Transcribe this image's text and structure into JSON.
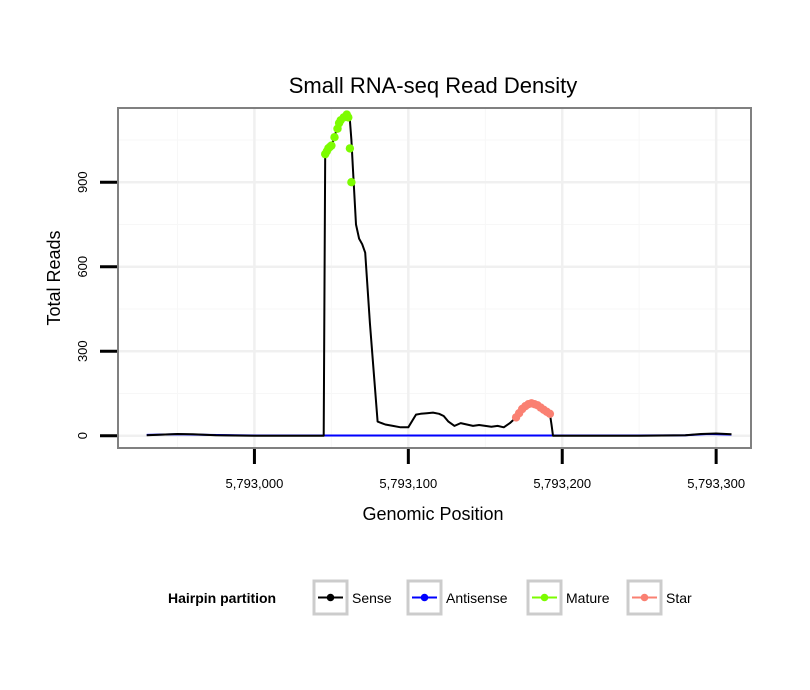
{
  "chart_data": {
    "type": "line",
    "title": "Small RNA-seq Read Density",
    "xlabel": "Genomic Position",
    "ylabel": "Total Reads",
    "xlim": [
      5792912,
      5793322
    ],
    "ylim": [
      -40,
      1160
    ],
    "x_ticks": [
      5793000,
      5793100,
      5793200,
      5793300
    ],
    "x_tick_labels": [
      "5,793,000",
      "5,793,100",
      "5,793,200",
      "5,793,300"
    ],
    "y_ticks": [
      0,
      300,
      600,
      900
    ],
    "y_tick_labels": [
      "0",
      "300",
      "600",
      "900"
    ],
    "grid": true,
    "legend": {
      "title": "Hairpin partition",
      "position": "bottom",
      "entries": [
        {
          "name": "Sense",
          "color": "#000000"
        },
        {
          "name": "Antisense",
          "color": "#0000ff"
        },
        {
          "name": "Mature",
          "color": "#7cfc00"
        },
        {
          "name": "Star",
          "color": "#fa8072"
        }
      ]
    },
    "series": [
      {
        "name": "Sense",
        "color": "#000000",
        "x": [
          5792930,
          5792940,
          5792950,
          5792960,
          5792975,
          5793000,
          5793020,
          5793045,
          5793046,
          5793047,
          5793048,
          5793049,
          5793050,
          5793052,
          5793054,
          5793056,
          5793058,
          5793060,
          5793061,
          5793062,
          5793063,
          5793064,
          5793066,
          5793068,
          5793070,
          5793072,
          5793075,
          5793080,
          5793085,
          5793090,
          5793095,
          5793100,
          5793105,
          5793108,
          5793112,
          5793116,
          5793120,
          5793123,
          5793126,
          5793130,
          5793134,
          5793138,
          5793142,
          5793146,
          5793150,
          5793154,
          5793158,
          5793162,
          5793166,
          5793170,
          5793172,
          5793174,
          5793176,
          5793178,
          5793180,
          5793182,
          5793184,
          5793186,
          5793188,
          5793190,
          5793192,
          5793193,
          5793194,
          5793200,
          5793250,
          5793280,
          5793290,
          5793300,
          5793310
        ],
        "values": [
          2,
          4,
          6,
          5,
          2,
          0,
          0,
          0,
          1000,
          1010,
          1020,
          1025,
          1030,
          1060,
          1100,
          1120,
          1130,
          1140,
          1135,
          1120,
          1050,
          950,
          750,
          700,
          680,
          650,
          400,
          50,
          40,
          35,
          30,
          30,
          75,
          78,
          80,
          82,
          78,
          70,
          50,
          35,
          45,
          40,
          35,
          38,
          35,
          32,
          35,
          30,
          45,
          65,
          80,
          95,
          105,
          110,
          115,
          112,
          108,
          100,
          90,
          85,
          78,
          40,
          0,
          0,
          0,
          2,
          6,
          8,
          5
        ]
      },
      {
        "name": "Antisense",
        "color": "#0000ff",
        "x": [
          5792930,
          5792950,
          5792970,
          5793000,
          5793050,
          5793100,
          5793150,
          5793200,
          5793250,
          5793280,
          5793295,
          5793310
        ],
        "values": [
          3,
          5,
          3,
          1,
          1,
          1,
          1,
          1,
          1,
          2,
          6,
          4
        ]
      },
      {
        "name": "Mature",
        "color": "#7cfc00",
        "x": [
          5793046,
          5793047,
          5793048,
          5793049,
          5793050,
          5793052,
          5793054,
          5793055,
          5793056,
          5793058,
          5793060,
          5793061,
          5793062,
          5793063
        ],
        "values": [
          1000,
          1010,
          1020,
          1025,
          1030,
          1060,
          1090,
          1110,
          1120,
          1130,
          1140,
          1130,
          1020,
          900
        ]
      },
      {
        "name": "Star",
        "color": "#fa8072",
        "x": [
          5793170,
          5793172,
          5793174,
          5793176,
          5793178,
          5793180,
          5793182,
          5793184,
          5793186,
          5793188,
          5793190,
          5793192
        ],
        "values": [
          65,
          80,
          95,
          105,
          112,
          115,
          112,
          108,
          100,
          92,
          85,
          78
        ]
      }
    ]
  }
}
